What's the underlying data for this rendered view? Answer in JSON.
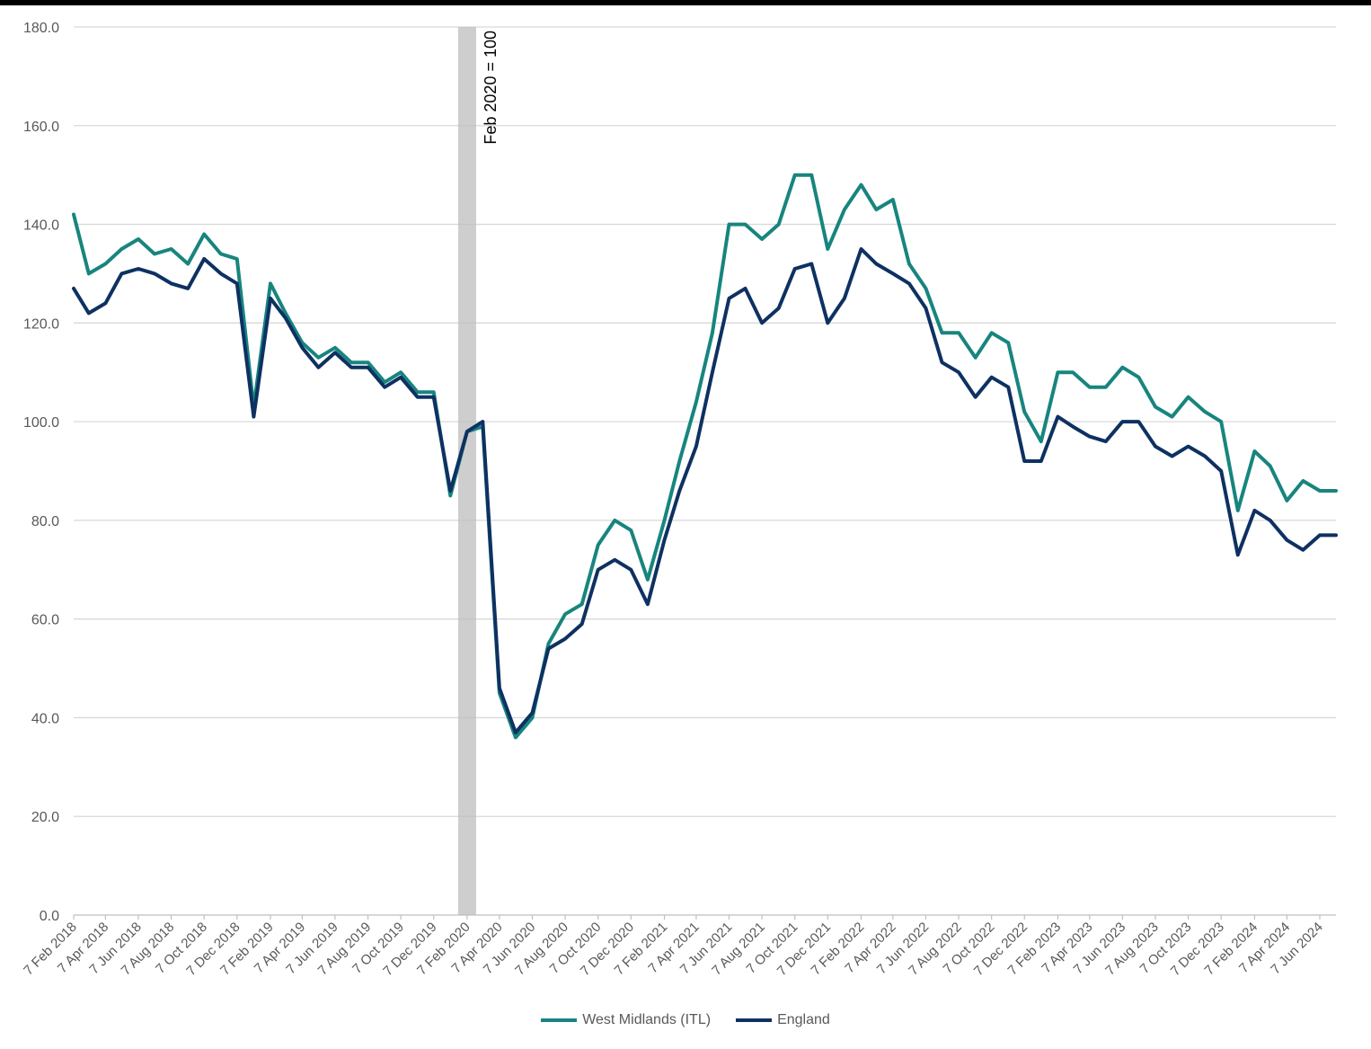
{
  "chart_data": {
    "type": "line",
    "title": "",
    "xlabel": "",
    "ylabel": "",
    "ylim": [
      0,
      180
    ],
    "yticks": [
      "0.0",
      "20.0",
      "40.0",
      "60.0",
      "80.0",
      "100.0",
      "120.0",
      "140.0",
      "160.0",
      "180.0"
    ],
    "xticks": [
      "7 Feb 2018",
      "7 Apr 2018",
      "7 Jun 2018",
      "7 Aug 2018",
      "7 Oct 2018",
      "7 Dec 2018",
      "7 Feb 2019",
      "7 Apr 2019",
      "7 Jun 2019",
      "7 Aug 2019",
      "7 Oct 2019",
      "7 Dec 2019",
      "7 Feb 2020",
      "7 Apr 2020",
      "7 Jun 2020",
      "7 Aug 2020",
      "7 Oct 2020",
      "7 Dec 2020",
      "7 Feb 2021",
      "7 Apr 2021",
      "7 Jun 2021",
      "7 Aug 2021",
      "7 Oct 2021",
      "7 Dec 2021",
      "7 Feb 2022",
      "7 Apr 2022",
      "7 Jun 2022",
      "7 Aug 2022",
      "7 Oct 2022",
      "7 Dec 2022",
      "7 Feb 2023",
      "7 Apr 2023",
      "7 Jun 2023",
      "7 Aug 2023",
      "7 Oct 2023",
      "7 Dec 2023",
      "7 Feb 2024",
      "7 Apr 2024",
      "7 Jun 2024"
    ],
    "x": [
      "2018-02-07",
      "2018-03-07",
      "2018-04-07",
      "2018-05-07",
      "2018-06-07",
      "2018-07-07",
      "2018-08-07",
      "2018-09-07",
      "2018-10-07",
      "2018-11-07",
      "2018-12-07",
      "2019-01-07",
      "2019-02-07",
      "2019-03-07",
      "2019-04-07",
      "2019-05-07",
      "2019-06-07",
      "2019-07-07",
      "2019-08-07",
      "2019-09-07",
      "2019-10-07",
      "2019-11-07",
      "2019-12-07",
      "2020-01-07",
      "2020-02-07",
      "2020-03-07",
      "2020-04-07",
      "2020-05-07",
      "2020-06-07",
      "2020-07-07",
      "2020-08-07",
      "2020-09-07",
      "2020-10-07",
      "2020-11-07",
      "2020-12-07",
      "2021-01-07",
      "2021-02-07",
      "2021-03-07",
      "2021-04-07",
      "2021-05-07",
      "2021-06-07",
      "2021-07-07",
      "2021-08-07",
      "2021-09-07",
      "2021-10-07",
      "2021-11-07",
      "2021-12-07",
      "2022-01-07",
      "2022-02-07",
      "2022-03-07",
      "2022-04-07",
      "2022-05-07",
      "2022-06-07",
      "2022-07-07",
      "2022-08-07",
      "2022-09-07",
      "2022-10-07",
      "2022-11-07",
      "2022-12-07",
      "2023-01-07",
      "2023-02-07",
      "2023-03-07",
      "2023-04-07",
      "2023-05-07",
      "2023-06-07",
      "2023-07-07",
      "2023-08-07",
      "2023-09-07",
      "2023-10-07",
      "2023-11-07",
      "2023-12-07",
      "2024-01-07",
      "2024-02-07",
      "2024-03-07",
      "2024-04-07",
      "2024-05-07",
      "2024-06-07",
      "2024-07-07"
    ],
    "series": [
      {
        "name": "West Midlands (ITL)",
        "color": "#17857E",
        "values": [
          142,
          130,
          132,
          135,
          137,
          134,
          135,
          132,
          138,
          134,
          133,
          103,
          128,
          122,
          116,
          113,
          115,
          112,
          112,
          108,
          110,
          106,
          106,
          85,
          98,
          99,
          45,
          36,
          40,
          55,
          61,
          63,
          75,
          80,
          78,
          68,
          80,
          92,
          104,
          118,
          140,
          140,
          137,
          140,
          150,
          150,
          135,
          143,
          148,
          143,
          145,
          132,
          127,
          118,
          118,
          113,
          118,
          116,
          102,
          96,
          110,
          110,
          107,
          107,
          111,
          109,
          103,
          101,
          105,
          102,
          100,
          82,
          94,
          91,
          84,
          88,
          86,
          86
        ]
      },
      {
        "name": "England",
        "color": "#0E3162",
        "values": [
          127,
          122,
          124,
          130,
          131,
          130,
          128,
          127,
          133,
          130,
          128,
          101,
          125,
          121,
          115,
          111,
          114,
          111,
          111,
          107,
          109,
          105,
          105,
          86,
          98,
          100,
          46,
          37,
          41,
          54,
          56,
          59,
          70,
          72,
          70,
          63,
          76,
          86,
          95,
          110,
          125,
          127,
          120,
          123,
          131,
          132,
          120,
          125,
          135,
          132,
          130,
          128,
          123,
          112,
          110,
          105,
          109,
          107,
          92,
          92,
          101,
          99,
          97,
          96,
          100,
          100,
          95,
          93,
          95,
          93,
          90,
          73,
          82,
          80,
          76,
          74,
          77,
          77
        ]
      }
    ],
    "annotations": [
      {
        "text": "Feb 2020 = 100",
        "x": "2020-02-07",
        "kind": "shaded-band"
      }
    ],
    "grid": "horizontal",
    "legend_position": "bottom"
  }
}
